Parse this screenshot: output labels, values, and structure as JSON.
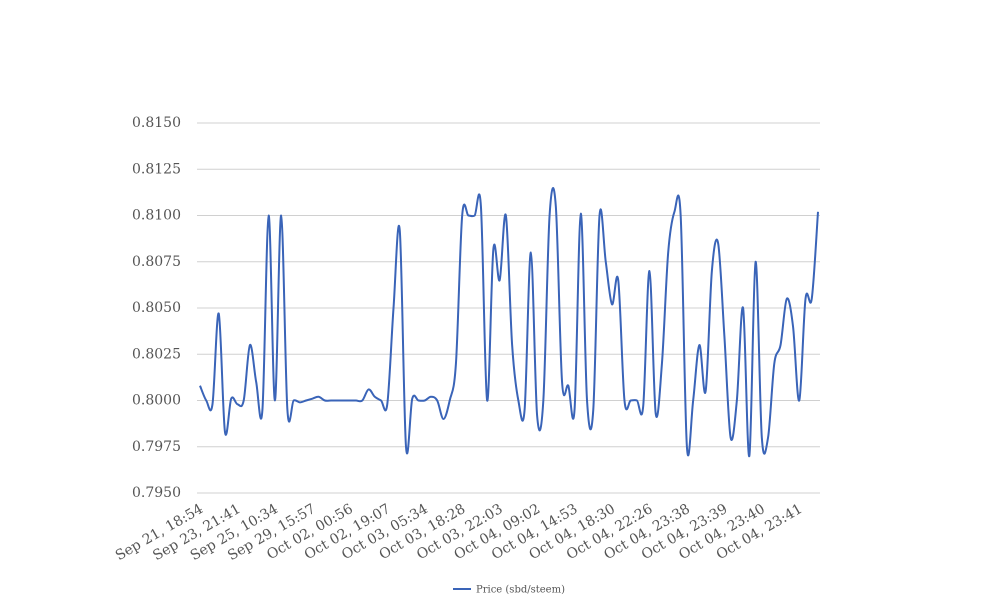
{
  "chart_data": {
    "type": "line",
    "categories": [
      "Sep 21, 18:54",
      null,
      null,
      null,
      null,
      null,
      "Sep 23, 21:41",
      null,
      null,
      null,
      null,
      null,
      "Sep 25, 10:34",
      null,
      null,
      null,
      null,
      null,
      "Sep 29, 15:57",
      null,
      null,
      null,
      null,
      null,
      "Oct 02, 00:56",
      null,
      null,
      null,
      null,
      null,
      "Oct 02, 19:07",
      null,
      null,
      null,
      null,
      null,
      "Oct 03, 05:34",
      null,
      null,
      null,
      null,
      null,
      "Oct 03, 18:28",
      null,
      null,
      null,
      null,
      null,
      "Oct 03, 22:03",
      null,
      null,
      null,
      null,
      null,
      "Oct 04, 09:02",
      null,
      null,
      null,
      null,
      null,
      "Oct 04, 14:53",
      null,
      null,
      null,
      null,
      null,
      "Oct 04, 18:30",
      null,
      null,
      null,
      null,
      null,
      "Oct 04, 22:26",
      null,
      null,
      null,
      null,
      null,
      "Oct 04, 23:38",
      null,
      null,
      null,
      null,
      null,
      "Oct 04, 23:39",
      null,
      null,
      null,
      null,
      null,
      "Oct 04, 23:40",
      null,
      null,
      null,
      null,
      null,
      "Oct 04, 23:41",
      null,
      null,
      null
    ],
    "series": [
      {
        "name": "Price (sbd/steem)",
        "color": "#3a64b8",
        "values": [
          0.8008,
          0.8,
          0.7998,
          0.8047,
          0.7983,
          0.8001,
          0.7998,
          0.8,
          0.803,
          0.801,
          0.7995,
          0.81,
          0.8,
          0.81,
          0.7995,
          0.8,
          0.7999,
          0.8,
          0.8001,
          0.8002,
          0.8,
          0.8,
          0.8,
          0.8,
          0.8,
          0.8,
          0.8,
          0.8006,
          0.8002,
          0.8,
          0.7998,
          0.805,
          0.8092,
          0.7975,
          0.8001,
          0.8,
          0.8,
          0.8002,
          0.8,
          0.799,
          0.8,
          0.802,
          0.81,
          0.81,
          0.81,
          0.8105,
          0.8,
          0.8082,
          0.8065,
          0.81,
          0.803,
          0.8,
          0.7995,
          0.808,
          0.7992,
          0.8,
          0.81,
          0.8105,
          0.801,
          0.8008,
          0.7995,
          0.8101,
          0.8,
          0.7995,
          0.81,
          0.8075,
          0.8052,
          0.8065,
          0.8,
          0.8,
          0.8,
          0.7997,
          0.807,
          0.7993,
          0.802,
          0.808,
          0.8102,
          0.81,
          0.7975,
          0.8,
          0.803,
          0.8005,
          0.807,
          0.8085,
          0.8035,
          0.798,
          0.8,
          0.805,
          0.797,
          0.8075,
          0.798,
          0.798,
          0.802,
          0.803,
          0.8055,
          0.804,
          0.8,
          0.8055,
          0.8055,
          0.8102
        ]
      }
    ],
    "ylim": [
      0.795,
      0.815
    ],
    "yticks": [
      {
        "value": 0.795,
        "label": "0.7950"
      },
      0.7975,
      {
        "value": 0.8,
        "label": "0.8000"
      },
      0.8025,
      {
        "value": 0.805,
        "label": "0.8050"
      },
      0.8075,
      {
        "value": 0.81,
        "label": "0.8100"
      },
      0.8125,
      {
        "value": 0.815,
        "label": "0.8150"
      }
    ],
    "grid": true,
    "legend": "bottom"
  }
}
